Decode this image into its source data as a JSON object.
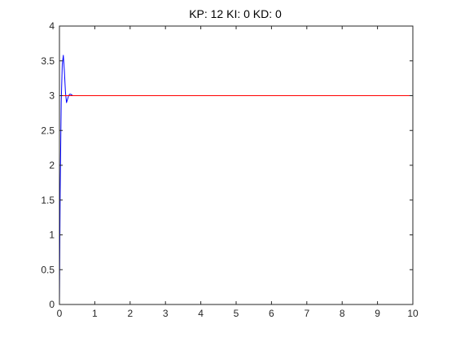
{
  "chart_data": {
    "type": "line",
    "title": "KP: 12 KI: 0 KD: 0",
    "xlabel": "",
    "ylabel": "",
    "xlim": [
      0,
      10
    ],
    "ylim": [
      0,
      4
    ],
    "xticks": [
      "0",
      "1",
      "2",
      "3",
      "4",
      "5",
      "6",
      "7",
      "8",
      "9",
      "10"
    ],
    "yticks": [
      "0",
      "0.5",
      "1",
      "1.5",
      "2",
      "2.5",
      "3",
      "3.5",
      "4"
    ],
    "grid": false,
    "legend": "none",
    "series": [
      {
        "color": "#0000ff",
        "x": [
          0,
          0.02,
          0.05,
          0.08,
          0.11,
          0.14,
          0.17,
          0.2,
          0.23,
          0.26,
          0.29,
          0.32,
          0.35,
          0.38,
          0.42,
          0.46
        ],
        "y": [
          0,
          1.6,
          2.9,
          3.45,
          3.58,
          3.35,
          3.05,
          2.9,
          2.95,
          3.0,
          3.02,
          3.02,
          3.01,
          3.0,
          3.0,
          3.0
        ]
      },
      {
        "color": "#ff0000",
        "x": [
          0,
          10
        ],
        "y": [
          3,
          3
        ]
      }
    ]
  }
}
